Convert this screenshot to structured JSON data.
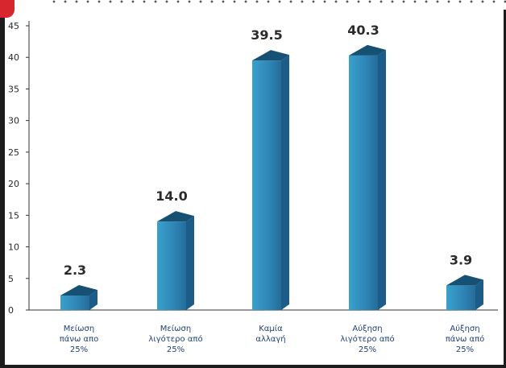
{
  "chart_data": {
    "type": "bar",
    "categories": [
      [
        "Μείωση",
        "πάνω απο",
        "25%"
      ],
      [
        "Μείωση",
        "λιγότερο από",
        "25%"
      ],
      [
        "Καμία",
        "αλλαγή"
      ],
      [
        "Αύξηση",
        "λιγότερο από",
        "25%"
      ],
      [
        "Αύξηση",
        "πάνω από",
        "25%"
      ]
    ],
    "values": [
      2.3,
      14.0,
      39.5,
      40.3,
      3.9
    ],
    "value_labels": [
      "2.3",
      "14.0",
      "39.5",
      "40.3",
      "3.9"
    ],
    "ylim": [
      0,
      45
    ],
    "yticks": [
      0,
      5,
      10,
      15,
      20,
      25,
      30,
      35,
      40,
      45
    ],
    "title": "",
    "xlabel": "",
    "ylabel": "",
    "grid": false,
    "colors": {
      "bar_front": "#2e84b5",
      "bar_side": "#1c5c88",
      "bar_top": "#165072",
      "axis": "#333333"
    }
  }
}
